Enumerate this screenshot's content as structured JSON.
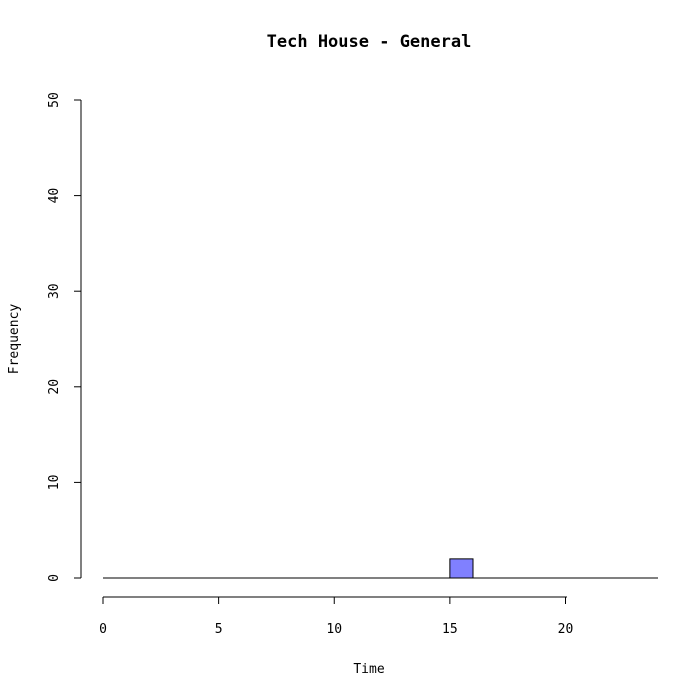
{
  "chart_data": {
    "type": "bar",
    "title": "Tech House - General",
    "xlabel": "Time",
    "ylabel": "Frequency",
    "xlim": [
      0,
      24
    ],
    "ylim": [
      0,
      50
    ],
    "x_ticks": [
      0,
      5,
      10,
      15,
      20
    ],
    "y_ticks": [
      0,
      10,
      20,
      30,
      40,
      50
    ],
    "bars": [
      {
        "x_start": 15,
        "x_end": 16,
        "value": 2
      }
    ],
    "colors": {
      "bar_fill": "#8080ff",
      "stroke": "#000000"
    },
    "grid": false
  }
}
